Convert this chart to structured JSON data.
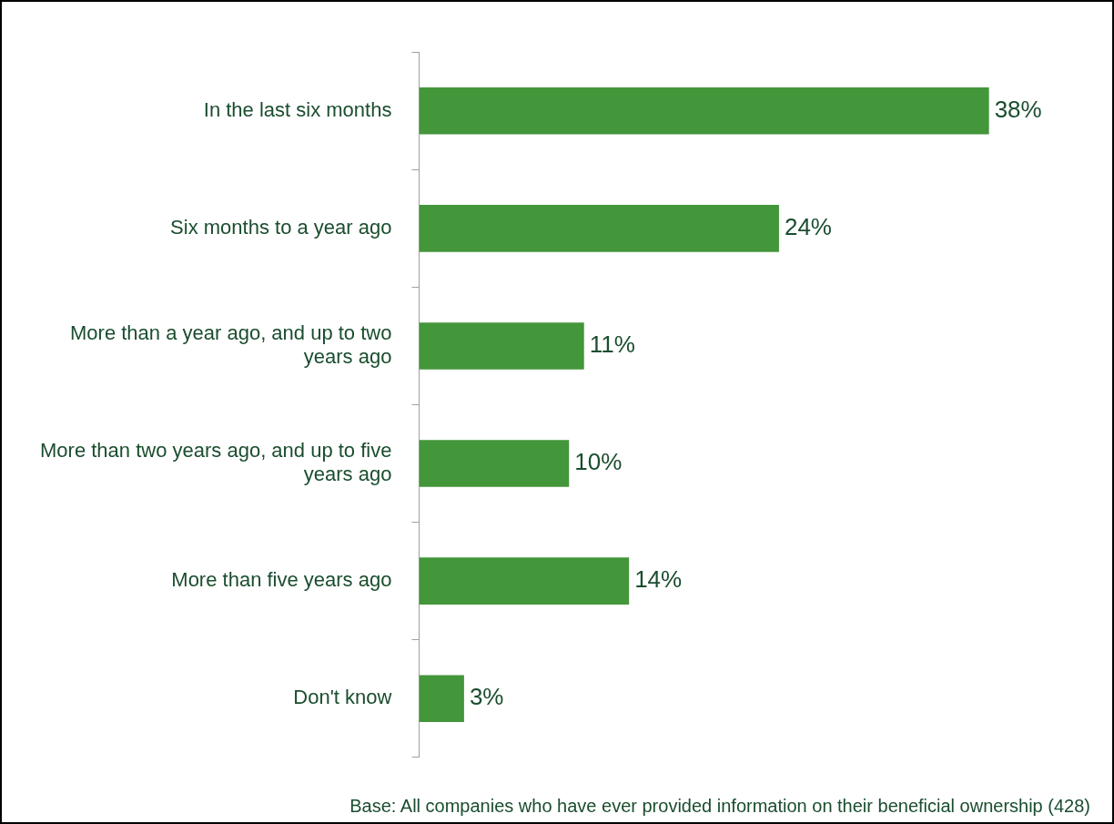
{
  "chart_data": {
    "type": "bar",
    "orientation": "horizontal",
    "categories": [
      "In the last six months",
      "Six months to a year ago",
      "More than a year ago, and up to two years ago",
      "More than two years ago, and up to five years ago",
      "More than five years ago",
      "Don't know"
    ],
    "values": [
      38,
      24,
      11,
      10,
      14,
      3
    ],
    "value_labels": [
      "38%",
      "24%",
      "11%",
      "10%",
      "14%",
      "3%"
    ],
    "color": "#43963a",
    "legend": false,
    "annotations": [
      "Base: All companies who have ever provided information on their beneficial ownership (428)"
    ]
  }
}
